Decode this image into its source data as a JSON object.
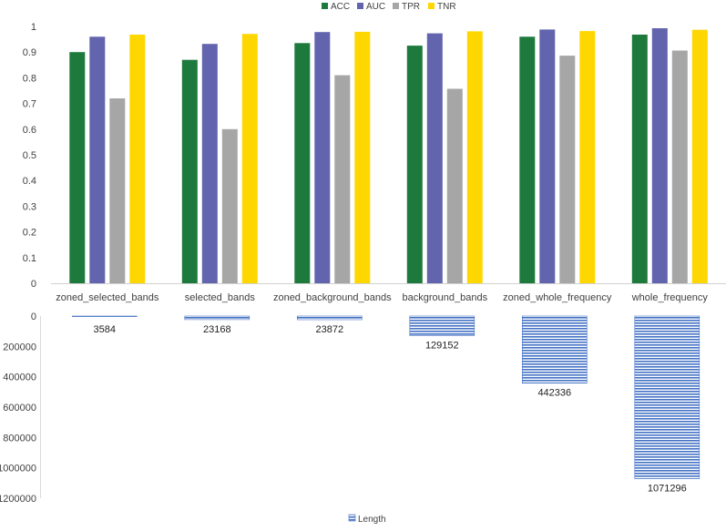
{
  "chart_data": [
    {
      "type": "bar",
      "categories": [
        "zoned_selected_bands",
        "selected_bands",
        "zoned_background_bands",
        "background_bands",
        "zoned_whole_frequency",
        "whole_frequency"
      ],
      "series": [
        {
          "name": "ACC",
          "color": "#1e7a3c",
          "values": [
            0.9,
            0.87,
            0.935,
            0.925,
            0.96,
            0.968
          ]
        },
        {
          "name": "AUC",
          "color": "#6264ad",
          "values": [
            0.96,
            0.932,
            0.978,
            0.973,
            0.988,
            0.993
          ]
        },
        {
          "name": "TPR",
          "color": "#a6a6a6",
          "values": [
            0.72,
            0.6,
            0.81,
            0.757,
            0.886,
            0.906
          ]
        },
        {
          "name": "TNR",
          "color": "#ffd700",
          "values": [
            0.968,
            0.971,
            0.979,
            0.981,
            0.982,
            0.987
          ]
        }
      ],
      "ylim": [
        0,
        1
      ],
      "yticks": [
        "0",
        "0.1",
        "0.2",
        "0.3",
        "0.4",
        "0.5",
        "0.6",
        "0.7",
        "0.8",
        "0.9",
        "1"
      ],
      "legend_position": "top",
      "grid": false
    },
    {
      "type": "bar",
      "orientation": "reversed-y",
      "series": [
        {
          "name": "Length",
          "color": "#4472c4",
          "values": [
            3584,
            23168,
            23872,
            129152,
            442336,
            1071296
          ],
          "labels": [
            "3584",
            "23168",
            "23872",
            "129152",
            "442336",
            "1071296"
          ]
        }
      ],
      "ylim": [
        0,
        1200000
      ],
      "yticks": [
        "0",
        "200000",
        "400000",
        "600000",
        "800000",
        "1000000",
        "1200000"
      ],
      "legend_position": "bottom",
      "grid": false
    }
  ]
}
